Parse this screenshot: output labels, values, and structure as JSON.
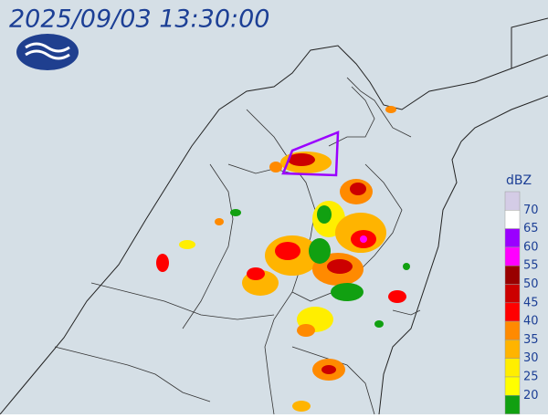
{
  "header": {
    "timestamp": "2025/09/03 13:30:00"
  },
  "legend": {
    "title": "dBZ",
    "levels": [
      70,
      65,
      60,
      55,
      50,
      45,
      40,
      35,
      30,
      25,
      20
    ],
    "colors": [
      "#d4cce6",
      "#ffffff",
      "#9a00ff",
      "#ff00ff",
      "#990000",
      "#cc0000",
      "#ff0000",
      "#ff8a00",
      "#ffb400",
      "#ffee00",
      "#ffff00",
      "#11a011"
    ]
  }
}
